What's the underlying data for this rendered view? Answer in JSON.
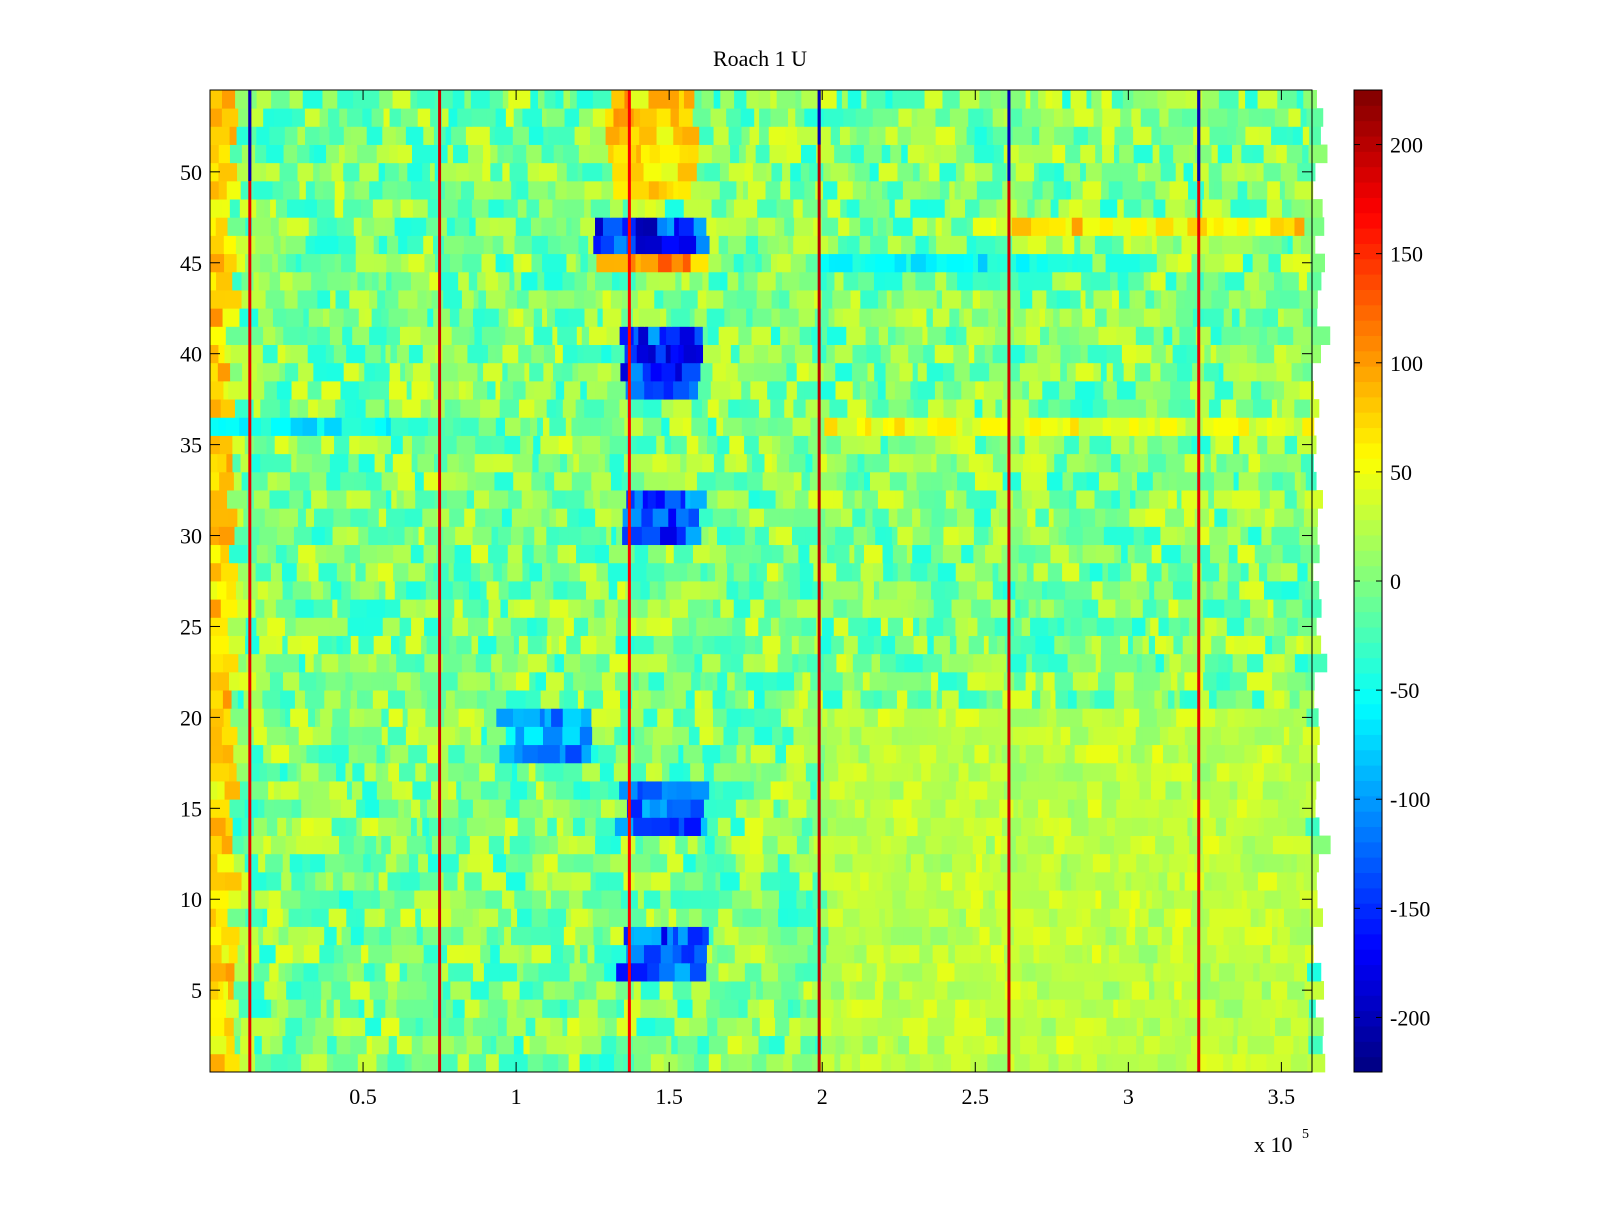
{
  "chart_data": {
    "type": "heatmap",
    "title": "Roach 1 U",
    "xlabel": "",
    "ylabel": "",
    "x_range": [
      0,
      360000
    ],
    "y_range": [
      0.5,
      54.5
    ],
    "x_ticks": [
      0.5,
      1,
      1.5,
      2,
      2.5,
      3,
      3.5
    ],
    "x_tick_labels": [
      "0.5",
      "1",
      "1.5",
      "2",
      "2.5",
      "3",
      "3.5"
    ],
    "x_multiplier_label": "x 10",
    "x_multiplier_exponent": "5",
    "y_ticks": [
      5,
      10,
      15,
      20,
      25,
      30,
      35,
      40,
      45,
      50
    ],
    "y_tick_labels": [
      "5",
      "10",
      "15",
      "20",
      "25",
      "30",
      "35",
      "40",
      "45",
      "50"
    ],
    "colorbar": {
      "colormap": "jet",
      "range": [
        -225,
        225
      ],
      "ticks": [
        -200,
        -150,
        -100,
        -50,
        0,
        50,
        100,
        150,
        200
      ],
      "tick_labels": [
        "-200",
        "-150",
        "-100",
        "-50",
        "0",
        "50",
        "100",
        "150",
        "200"
      ]
    },
    "rows": 54,
    "background_level": 0,
    "features": [
      {
        "kind": "vertical_line",
        "x": 13000,
        "value": 180
      },
      {
        "kind": "vertical_line",
        "x": 75000,
        "value": 190
      },
      {
        "kind": "vertical_line",
        "x": 137000,
        "value": 170
      },
      {
        "kind": "vertical_line",
        "x": 199000,
        "value": 200
      },
      {
        "kind": "vertical_line",
        "x": 261000,
        "value": 190
      },
      {
        "kind": "vertical_line",
        "x": 323000,
        "value": 180
      },
      {
        "kind": "vertical_line_negative",
        "x": 13000,
        "rows": [
          50,
          54
        ],
        "value": -200
      },
      {
        "kind": "vertical_line_negative",
        "x": 199000,
        "rows": [
          52,
          54
        ],
        "value": -200
      },
      {
        "kind": "vertical_line_negative",
        "x": 261000,
        "rows": [
          50,
          54
        ],
        "value": -200
      },
      {
        "kind": "vertical_line_negative",
        "x": 323000,
        "rows": [
          50,
          54
        ],
        "value": -200
      },
      {
        "kind": "patch",
        "x": [
          125000,
          162000
        ],
        "rows": [
          46,
          47
        ],
        "value": -160
      },
      {
        "kind": "patch",
        "x": [
          125000,
          162000
        ],
        "rows": [
          45,
          45
        ],
        "value": 130
      },
      {
        "kind": "patch",
        "x": [
          135000,
          160000
        ],
        "rows": [
          38,
          41
        ],
        "value": -165
      },
      {
        "kind": "patch",
        "x": [
          135000,
          160000
        ],
        "rows": [
          30,
          32
        ],
        "value": -150
      },
      {
        "kind": "patch",
        "x": [
          135000,
          162000
        ],
        "rows": [
          14,
          16
        ],
        "value": -140
      },
      {
        "kind": "patch",
        "x": [
          135000,
          162000
        ],
        "rows": [
          6,
          8
        ],
        "value": -140
      },
      {
        "kind": "patch",
        "x": [
          95000,
          125000
        ],
        "rows": [
          18,
          20
        ],
        "value": -110
      },
      {
        "kind": "patch",
        "x": [
          130000,
          158000
        ],
        "rows": [
          49,
          54
        ],
        "value": 90
      },
      {
        "kind": "patch",
        "x": [
          0,
          8000
        ],
        "rows": [
          1,
          54
        ],
        "value": 80
      },
      {
        "kind": "patch",
        "x": [
          250000,
          360000
        ],
        "rows": [
          47,
          47
        ],
        "value": 70
      },
      {
        "kind": "patch",
        "x": [
          200000,
          290000
        ],
        "rows": [
          45,
          45
        ],
        "value": -60
      },
      {
        "kind": "patch",
        "x": [
          200000,
          360000
        ],
        "rows": [
          36,
          36
        ],
        "value": 55
      },
      {
        "kind": "patch",
        "x": [
          0,
          75000
        ],
        "rows": [
          36,
          36
        ],
        "value": -60
      },
      {
        "kind": "patch",
        "x": [
          200000,
          360000
        ],
        "rows": [
          1,
          20
        ],
        "value": 30
      }
    ]
  }
}
